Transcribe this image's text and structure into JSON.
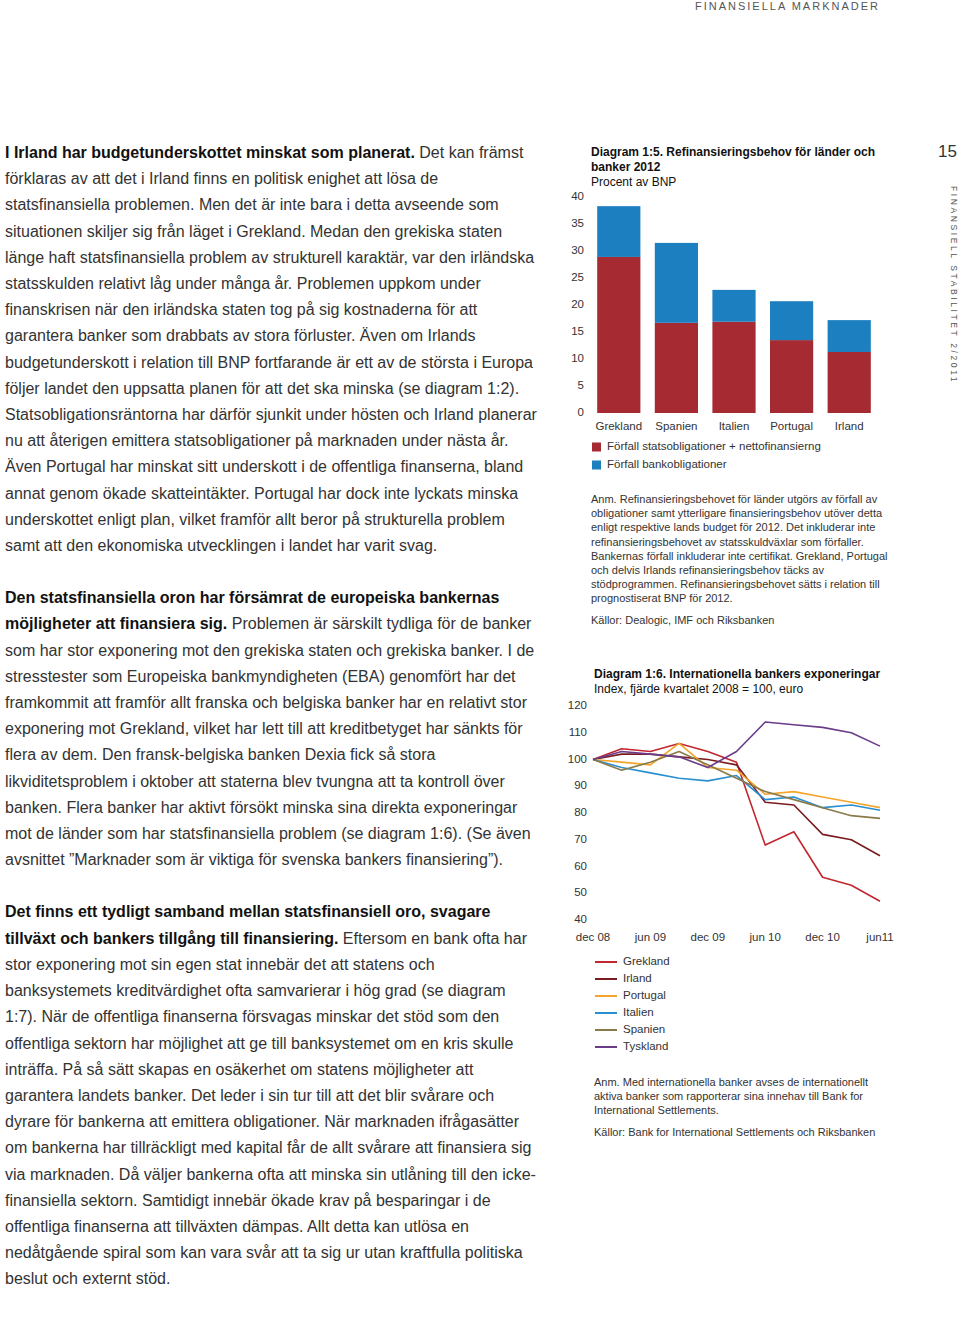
{
  "document": {
    "header": "FINANSIELLA MARKNADER",
    "page_number": "15",
    "side_text": "FINANSIELL STABILITET 2/2011",
    "paragraphs": [
      {
        "lead": "I Irland har budgetunderskottet minskat som planerat.",
        "text": " Det kan främst förklaras av att det i Irland finns en politisk enighet att lösa de statsfinansiella problemen. Men det är inte bara i detta avseende som situationen skiljer sig från läget i Grekland. Medan den grekiska staten länge haft statsfinansiella problem av strukturell karaktär, var den irländska statsskulden relativt låg under många år. Problemen uppkom under finanskrisen när den irländska staten tog på sig kostnaderna för att garantera banker som drabbats av stora förluster. Även om Irlands budgetunderskott i relation till BNP fortfarande är ett av de största i Europa följer landet den uppsatta planen för att det ska minska (se diagram 1:2). Statsobligationsräntorna har därför sjunkit under hösten och Irland planerar nu att återigen emittera statsobligationer på marknaden under nästa år. Även Portugal har minskat sitt underskott i de offentliga finanserna, bland annat genom ökade skatteintäkter. Portugal har dock inte lyckats minska underskottet enligt plan, vilket framför allt beror på strukturella problem samt att den ekonomiska utvecklingen i landet har varit svag."
      },
      {
        "lead": "Den statsfinansiella oron har försämrat de europeiska bankernas möjligheter att finansiera sig.",
        "text": " Problemen är särskilt tydliga för de banker som har stor exponering mot den grekiska staten och grekiska banker. I de stresstester som Europeiska bankmyndigheten (EBA) genomfört har det framkommit att framför allt franska och belgiska banker har en relativt stor exponering mot Grekland, vilket har lett till att kreditbetyget har sänkts för flera av dem. Den fransk-belgiska banken Dexia fick så stora likviditetsproblem i oktober att staterna blev tvungna att ta kontroll över banken. Flera banker har aktivt försökt minska sina direkta exponeringar mot de länder som har statsfinansiella problem (se diagram 1:6). (Se även avsnittet ”Marknader som är viktiga för svenska bankers finansiering”)."
      },
      {
        "lead": "Det finns ett tydligt samband mellan statsfinansiell oro, svagare tillväxt och bankers tillgång till finansiering.",
        "text": " Eftersom en bank ofta har stor exponering mot sin egen stat innebär det att statens och banksystemets kreditvärdighet ofta samvarierar i hög grad (se diagram 1:7). När de offentliga finanserna försvagas minskar det stöd som den offentliga sektorn har möjlighet att ge till banksystemet om en kris skulle inträffa. På så sätt skapas en osäkerhet om statens möjligheter att garantera landets banker. Det leder i sin tur till att det blir svårare och dyrare för bankerna att emittera obligationer. När marknaden ifrågasätter om bankerna har tillräckligt med kapital får de allt svårare att finansiera sig via marknaden. Då väljer bankerna ofta att minska sin utlåning till den icke-finansiella sektorn. Samtidigt innebär ökade krav på besparingar i de offentliga finanserna att tillväxten dämpas. Allt detta kan utlösa en nedåtgående spiral som kan vara svår att ta sig ur utan kraftfulla politiska beslut och externt stöd."
      }
    ]
  },
  "chart_data": [
    {
      "type": "bar",
      "stacked": true,
      "title": "Diagram 1:5. Refinansieringsbehov för länder och banker 2012",
      "subtitle": "Procent av BNP",
      "categories": [
        "Grekland",
        "Spanien",
        "Italien",
        "Portugal",
        "Irland"
      ],
      "series": [
        {
          "name": "Förfall statsobligationer + nettofinansierng",
          "color": "#a52a32",
          "values": [
            28.9,
            16.7,
            16.9,
            13.5,
            11.3
          ]
        },
        {
          "name": "Förfall bankobligationer",
          "color": "#1c7fc0",
          "values": [
            9.4,
            14.8,
            5.9,
            7.2,
            5.9
          ]
        }
      ],
      "ylim": [
        0,
        40
      ],
      "yticks": [
        0,
        5,
        10,
        15,
        20,
        25,
        30,
        35,
        40
      ],
      "legend": "bottom",
      "note": "Anm. Refinansieringsbehovet för länder utgörs av förfall av obligationer samt ytterligare finansieringsbehov utöver detta enligt respektive lands budget för 2012. Det inkluderar inte refinansieringsbehovet av statsskuldväxlar som förfaller. Bankernas förfall inkluderar inte certifikat. Grekland, Portugal och delvis Irlands refinansieringsbehov täcks av stödprogrammen. Refinansieringsbehovet sätts i relation till prognostiserat BNP för 2012.",
      "source": "Källor: Dealogic, IMF och Riksbanken"
    },
    {
      "type": "line",
      "title": "Diagram 1:6. Internationella bankers exponeringar",
      "subtitle": "Index, fjärde kvartalet 2008 = 100, euro",
      "categories": [
        "dec 08",
        null,
        "jun 09",
        null,
        "dec 09",
        null,
        "jun 10",
        null,
        "dec 10",
        null,
        "jun11"
      ],
      "series": [
        {
          "name": "Grekland",
          "color": "#c1272d",
          "values": [
            100,
            104,
            103,
            106,
            103,
            99,
            68,
            73,
            56,
            53,
            47
          ]
        },
        {
          "name": "Irland",
          "color": "#7a1c1f",
          "values": [
            100,
            102,
            102,
            101,
            100,
            98,
            84,
            83,
            72,
            70,
            64
          ]
        },
        {
          "name": "Portugal",
          "color": "#f4a52a",
          "values": [
            100,
            99,
            98,
            106,
            97,
            96,
            87,
            88,
            86,
            84,
            82
          ]
        },
        {
          "name": "Italien",
          "color": "#2a8fd0",
          "values": [
            100,
            97,
            95,
            93,
            92,
            94,
            85,
            86,
            82,
            83,
            81
          ]
        },
        {
          "name": "Spanien",
          "color": "#8a7a4a",
          "values": [
            100,
            96,
            99,
            103,
            98,
            93,
            88,
            85,
            82,
            79,
            78
          ]
        },
        {
          "name": "Tyskland",
          "color": "#6a3c8a",
          "values": [
            100,
            103,
            102,
            101,
            97,
            103,
            114,
            113,
            112,
            110,
            105
          ]
        }
      ],
      "ylim": [
        40,
        120
      ],
      "yticks": [
        40,
        50,
        60,
        70,
        80,
        90,
        100,
        110,
        120
      ],
      "legend": "bottom",
      "note": "Anm. Med internationella banker avses de internationellt aktiva banker som rapporterar sina innehav till Bank for International Settlements.",
      "source": "Källor: Bank for International Settlements och Riksbanken"
    }
  ]
}
